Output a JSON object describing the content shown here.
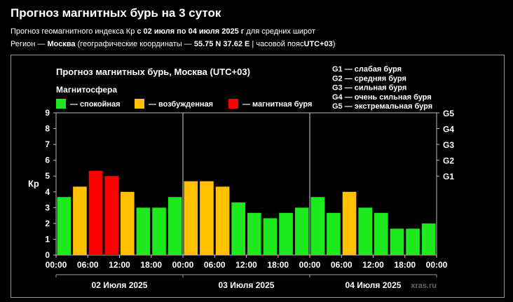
{
  "page": {
    "title": "Прогноз магнитных бурь на 3 суток",
    "line1": {
      "prefix": "Прогноз геомагнитного индекса Кр",
      "bold": "с 02 июля по 04 июля 2025 г",
      "suffix": "для средних широт"
    },
    "line2": {
      "prefix": "Регион —",
      "region": "Москва",
      "middle": "(географические координаты —",
      "coords": "55.75 N 37.62 E",
      "middle2": "| часовой пояс",
      "tz": "UTC+03",
      "suffix": ")"
    }
  },
  "chart_data": {
    "type": "bar",
    "title": "Прогноз магнитных бурь, Москва (UTC+03)",
    "legend_title": "Магнитосфера",
    "legend": [
      {
        "label": "— спокойная",
        "color": "#1ee81e"
      },
      {
        "label": "— возбужденная",
        "color": "#ffc000"
      },
      {
        "label": "— магнитная буря",
        "color": "#ff0000"
      }
    ],
    "g_scale": [
      "G1 — слабая буря",
      "G2 — средняя буря",
      "G3 — сильная буря",
      "G4 — очень сильная буря",
      "G5 — экстремальная буря"
    ],
    "ylabel": "Кр",
    "ylim": [
      0,
      9
    ],
    "y_ticks": [
      "0",
      "1",
      "2",
      "3",
      "4",
      "5",
      "6",
      "7",
      "8",
      "9"
    ],
    "right_ticks": [
      {
        "label": "G1",
        "value": 5
      },
      {
        "label": "G2",
        "value": 6
      },
      {
        "label": "G3",
        "value": 7
      },
      {
        "label": "G4",
        "value": 8
      },
      {
        "label": "G5",
        "value": 9
      }
    ],
    "x_tick_labels": [
      "00:00",
      "06:00",
      "12:00",
      "18:00",
      "00:00",
      "06:00",
      "12:00",
      "18:00",
      "00:00",
      "06:00",
      "12:00",
      "18:00",
      "00:00"
    ],
    "days": [
      "02 Июля 2025",
      "03 Июля 2025",
      "04 Июля 2025"
    ],
    "values": [
      3.67,
      4.33,
      5.33,
      5.0,
      4.0,
      3.0,
      3.0,
      3.67,
      4.67,
      4.67,
      4.33,
      3.33,
      2.67,
      2.33,
      2.67,
      3.0,
      3.67,
      2.67,
      4.0,
      3.0,
      2.67,
      1.67,
      1.67,
      2.0
    ],
    "colors": {
      "quiet": "#1ee81e",
      "active": "#ffc000",
      "storm": "#ff0000"
    },
    "watermark": "xras.ru"
  }
}
